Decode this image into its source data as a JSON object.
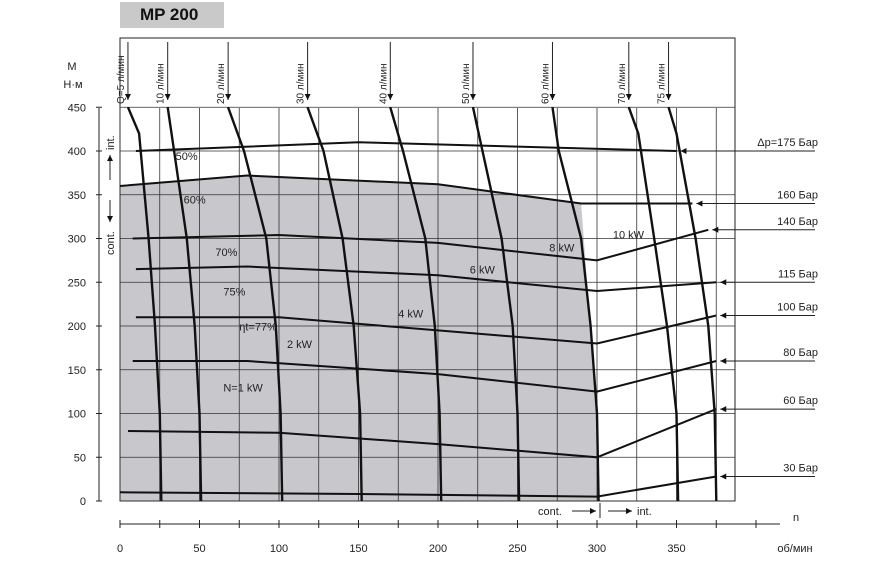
{
  "chart_data": {
    "type": "line",
    "title": "MP 200",
    "ylabel_top": "M",
    "ylabel_unit": "Н·м",
    "xlabel": "n",
    "xunit": "об/мин",
    "xlim": [
      0,
      400
    ],
    "ylim": [
      0,
      450
    ],
    "x_ticks": [
      "0",
      "50",
      "100",
      "150",
      "200",
      "250",
      "300",
      "350"
    ],
    "y_ticks": [
      "0",
      "50",
      "100",
      "150",
      "200",
      "250",
      "300",
      "350",
      "400",
      "450"
    ],
    "flow_labels": [
      "Q=5 л/мин",
      "10 л/мин",
      "20 л/мин",
      "30 л/мин",
      "40 л/мин",
      "50 л/мин",
      "60 л/мин",
      "70 л/мин",
      "75 л/мин"
    ],
    "pressure_labels": [
      "Δp=175 Бар",
      "160 Бар",
      "140 Бар",
      "115 Бар",
      "100 Бар",
      "80 Бар",
      "60 Бар",
      "30 Бар"
    ],
    "efficiency_labels": [
      "50%",
      "60%",
      "70%",
      "75%",
      "ηt=77%"
    ],
    "power_labels": [
      "N=1 kW",
      "2 kW",
      "4 kW",
      "6 kW",
      "8 kW",
      "10 kW"
    ],
    "zone_labels": {
      "cont": "cont.",
      "int": "int."
    },
    "colors": {
      "shade": "#c8c8cc",
      "line": "#111111",
      "grid": "#333333"
    },
    "flow_lines": [
      {
        "label": "Q=5 л/мин",
        "points": [
          [
            5,
            450
          ],
          [
            12,
            420
          ],
          [
            18,
            300
          ],
          [
            22,
            200
          ],
          [
            25,
            100
          ],
          [
            26,
            0
          ]
        ]
      },
      {
        "label": "10 л/мин",
        "points": [
          [
            30,
            450
          ],
          [
            34,
            400
          ],
          [
            42,
            300
          ],
          [
            47,
            200
          ],
          [
            50,
            100
          ],
          [
            51,
            0
          ]
        ]
      },
      {
        "label": "20 л/мин",
        "points": [
          [
            68,
            450
          ],
          [
            78,
            400
          ],
          [
            92,
            300
          ],
          [
            98,
            200
          ],
          [
            101,
            100
          ],
          [
            102,
            0
          ]
        ]
      },
      {
        "label": "30 л/мин",
        "points": [
          [
            118,
            450
          ],
          [
            128,
            400
          ],
          [
            140,
            300
          ],
          [
            147,
            200
          ],
          [
            151,
            100
          ],
          [
            152,
            0
          ]
        ]
      },
      {
        "label": "40 л/мин",
        "points": [
          [
            170,
            450
          ],
          [
            178,
            400
          ],
          [
            192,
            300
          ],
          [
            198,
            200
          ],
          [
            201,
            100
          ],
          [
            202,
            0
          ]
        ]
      },
      {
        "label": "50 л/мин",
        "points": [
          [
            222,
            450
          ],
          [
            228,
            400
          ],
          [
            240,
            300
          ],
          [
            247,
            200
          ],
          [
            250,
            100
          ],
          [
            251,
            0
          ]
        ]
      },
      {
        "label": "60 л/мин",
        "points": [
          [
            272,
            450
          ],
          [
            276,
            400
          ],
          [
            290,
            300
          ],
          [
            296,
            200
          ],
          [
            300,
            100
          ],
          [
            301,
            0
          ]
        ]
      },
      {
        "label": "70 л/мин",
        "points": [
          [
            320,
            450
          ],
          [
            326,
            420
          ],
          [
            336,
            300
          ],
          [
            344,
            200
          ],
          [
            350,
            100
          ],
          [
            351,
            0
          ]
        ]
      },
      {
        "label": "75 л/мин",
        "points": [
          [
            345,
            450
          ],
          [
            350,
            420
          ],
          [
            362,
            300
          ],
          [
            370,
            200
          ],
          [
            374,
            100
          ],
          [
            375,
            0
          ]
        ]
      }
    ],
    "pressure_lines": [
      {
        "label": "Δp=175 Бар",
        "points": [
          [
            10,
            400
          ],
          [
            150,
            410
          ],
          [
            250,
            405
          ],
          [
            350,
            400
          ]
        ]
      },
      {
        "label": "160 Бар",
        "points": [
          [
            0,
            360
          ],
          [
            80,
            372
          ],
          [
            200,
            362
          ],
          [
            290,
            340
          ],
          [
            360,
            340
          ]
        ]
      },
      {
        "label": "140 Бар",
        "points": [
          [
            8,
            300
          ],
          [
            100,
            304
          ],
          [
            200,
            295
          ],
          [
            300,
            275
          ],
          [
            370,
            310
          ]
        ]
      },
      {
        "label": "115 Бар",
        "points": [
          [
            10,
            265
          ],
          [
            80,
            268
          ],
          [
            200,
            258
          ],
          [
            300,
            240
          ],
          [
            375,
            250
          ]
        ]
      },
      {
        "label": "100 Бар",
        "points": [
          [
            10,
            210
          ],
          [
            100,
            210
          ],
          [
            200,
            195
          ],
          [
            300,
            180
          ],
          [
            375,
            212
          ]
        ]
      },
      {
        "label": "80 Бар",
        "points": [
          [
            8,
            160
          ],
          [
            80,
            160
          ],
          [
            200,
            145
          ],
          [
            300,
            125
          ],
          [
            375,
            160
          ]
        ]
      },
      {
        "label": "60 Бар",
        "points": [
          [
            5,
            80
          ],
          [
            100,
            78
          ],
          [
            200,
            65
          ],
          [
            300,
            50
          ],
          [
            375,
            105
          ]
        ]
      },
      {
        "label": "30 Бар",
        "points": [
          [
            0,
            10
          ],
          [
            150,
            8
          ],
          [
            300,
            5
          ],
          [
            375,
            28
          ]
        ]
      }
    ]
  }
}
